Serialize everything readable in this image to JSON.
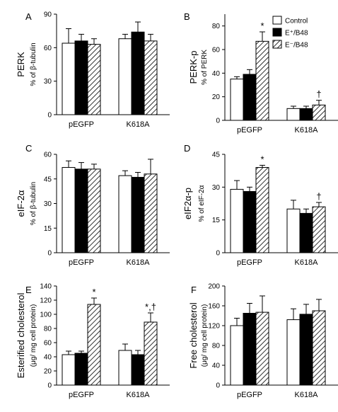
{
  "legend": {
    "items": [
      {
        "label": "Control",
        "fill": "white"
      },
      {
        "label": "E⁺/B48",
        "fill": "black"
      },
      {
        "label": "E⁻/B48",
        "fill": "hatch"
      }
    ]
  },
  "colors": {
    "axis": "#000000",
    "bar_outline": "#000000",
    "solid": "#000000",
    "open": "#ffffff"
  },
  "chart_data": [
    {
      "panel": "A",
      "type": "bar",
      "ylabel_main": "PERK",
      "ylabel_sub": "% of β-tubulin",
      "ylim": [
        0,
        90
      ],
      "yticks": [
        0,
        30,
        60,
        90
      ],
      "categories": [
        "pEGFP",
        "K618A"
      ],
      "series": [
        {
          "name": "Control",
          "values": [
            64,
            68
          ],
          "errors": [
            13,
            4
          ]
        },
        {
          "name": "E⁺/B48",
          "values": [
            66,
            74
          ],
          "errors": [
            6,
            9
          ]
        },
        {
          "name": "E⁻/B48",
          "values": [
            63,
            66
          ],
          "errors": [
            5,
            6
          ]
        }
      ],
      "annotations": []
    },
    {
      "panel": "B",
      "type": "bar",
      "ylabel_main": "PERK-p",
      "ylabel_sub": "% of PERK",
      "ylim": [
        0,
        90
      ],
      "yticks": [
        0,
        20,
        40,
        60,
        80
      ],
      "categories": [
        "pEGFP",
        "K618A"
      ],
      "series": [
        {
          "name": "Control",
          "values": [
            35,
            10
          ],
          "errors": [
            2,
            2
          ]
        },
        {
          "name": "E⁺/B48",
          "values": [
            39,
            10
          ],
          "errors": [
            4,
            2
          ]
        },
        {
          "name": "E⁻/B48",
          "values": [
            67,
            13
          ],
          "errors": [
            8,
            4
          ]
        }
      ],
      "annotations": [
        {
          "series": 2,
          "category": 0,
          "text": "*"
        },
        {
          "series": 2,
          "category": 1,
          "text": "†"
        }
      ]
    },
    {
      "panel": "C",
      "type": "bar",
      "ylabel_main": "eIF-2α",
      "ylabel_sub": "% of β-tubulin",
      "ylim": [
        0,
        60
      ],
      "yticks": [
        0,
        15,
        30,
        45,
        60
      ],
      "categories": [
        "pEGFP",
        "K618A"
      ],
      "series": [
        {
          "name": "Control",
          "values": [
            52,
            47
          ],
          "errors": [
            4,
            3
          ]
        },
        {
          "name": "E⁺/B48",
          "values": [
            51,
            46
          ],
          "errors": [
            4,
            3
          ]
        },
        {
          "name": "E⁻/B48",
          "values": [
            51,
            48
          ],
          "errors": [
            3,
            9
          ]
        }
      ],
      "annotations": []
    },
    {
      "panel": "D",
      "type": "bar",
      "ylabel_main": "eIF2α-p",
      "ylabel_sub": "% of eIF-2α",
      "ylim": [
        0,
        45
      ],
      "yticks": [
        0,
        15,
        30,
        45
      ],
      "categories": [
        "pEGFP",
        "K618A"
      ],
      "series": [
        {
          "name": "Control",
          "values": [
            29,
            20
          ],
          "errors": [
            4,
            4
          ]
        },
        {
          "name": "E⁺/B48",
          "values": [
            28,
            18
          ],
          "errors": [
            2,
            2
          ]
        },
        {
          "name": "E⁻/B48",
          "values": [
            39,
            21
          ],
          "errors": [
            1,
            2
          ]
        }
      ],
      "annotations": [
        {
          "series": 2,
          "category": 0,
          "text": "*"
        },
        {
          "series": 2,
          "category": 1,
          "text": "†"
        }
      ]
    },
    {
      "panel": "E",
      "type": "bar",
      "ylabel_main": "Esterified cholesterol",
      "ylabel_sub": "(μg/ mg cell protein)",
      "ylim": [
        0,
        140
      ],
      "yticks": [
        0,
        20,
        40,
        60,
        80,
        100,
        120,
        140
      ],
      "categories": [
        "pEGFP",
        "K618A"
      ],
      "series": [
        {
          "name": "Control",
          "values": [
            43,
            49
          ],
          "errors": [
            5,
            9
          ]
        },
        {
          "name": "E⁺/B48",
          "values": [
            45,
            43
          ],
          "errors": [
            3,
            6
          ]
        },
        {
          "name": "E⁻/B48",
          "values": [
            114,
            89
          ],
          "errors": [
            9,
            13
          ]
        }
      ],
      "annotations": [
        {
          "series": 2,
          "category": 0,
          "text": "*"
        },
        {
          "series": 2,
          "category": 1,
          "text": "*,†"
        }
      ]
    },
    {
      "panel": "F",
      "type": "bar",
      "ylabel_main": "Free cholesterol",
      "ylabel_sub": "(μg/ mg cell protein)",
      "ylim": [
        0,
        200
      ],
      "yticks": [
        0,
        40,
        80,
        120,
        160,
        200
      ],
      "categories": [
        "pEGFP",
        "K618A"
      ],
      "series": [
        {
          "name": "Control",
          "values": [
            120,
            132
          ],
          "errors": [
            15,
            22
          ]
        },
        {
          "name": "E⁺/B48",
          "values": [
            145,
            143
          ],
          "errors": [
            20,
            20
          ]
        },
        {
          "name": "E⁻/B48",
          "values": [
            147,
            150
          ],
          "errors": [
            33,
            23
          ]
        }
      ],
      "annotations": []
    }
  ]
}
